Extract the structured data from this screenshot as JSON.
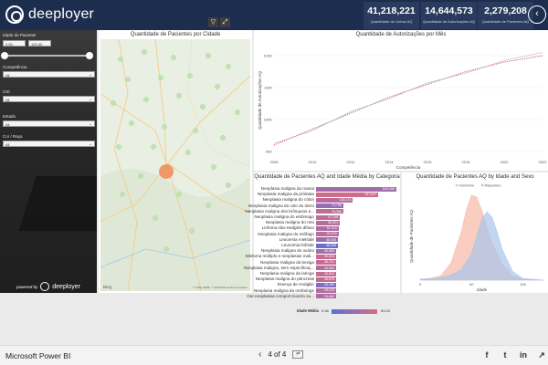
{
  "brand": {
    "name": "deeployer",
    "powered_by": "powered by"
  },
  "kpis": [
    {
      "value": "41,218,221",
      "label": "Quantidade de Linhas AQ"
    },
    {
      "value": "14,644,573",
      "label": "Quantidade de Autorizações AQ"
    },
    {
      "value": "2,279,208",
      "label": "Quantidade de Pacientes AQ"
    }
  ],
  "filters": {
    "age": {
      "label": "Idade do Paciente",
      "min": "0,00",
      "max": "120,00",
      "slider_from": 0.0,
      "slider_to": 1.0
    },
    "competencia": {
      "label": "Competência",
      "value": "All"
    },
    "cid": {
      "label": "CID",
      "value": "All"
    },
    "estado": {
      "label": "Estado",
      "value": "All"
    },
    "cor_raca": {
      "label": "Cor / Raça",
      "value": "All"
    }
  },
  "map": {
    "title": "Quantidade de Pacientes por Cidade",
    "provider": "Bing",
    "copyright": "© 2018 HERE, © 2018 Microsoft Corporation"
  },
  "line_chart": {
    "title": "Quantidade de Autorizações por Mês",
    "ylabel": "Quantidade de Autorizações AQ",
    "xlabel": "Competência"
  },
  "bar_chart": {
    "title": "Quantidade de Pacientes AQ and Idade Média by Categoria",
    "legend_title": "Idade Média",
    "legend_min": "0.66",
    "legend_max": "83.00"
  },
  "density_chart": {
    "title": "Quantidade de Pacientes AQ by Idade and Sexo",
    "legend": [
      "Feminino",
      "Masculino"
    ],
    "ylabel": "Quantidade de Pacientes AQ",
    "xlabel": "Idade"
  },
  "chart_data": [
    {
      "type": "line",
      "title": "Quantidade de Autorizações por Mês",
      "xlabel": "Competência",
      "ylabel": "Quantidade de Autorizações AQ",
      "x_ticks": [
        "2008",
        "2010",
        "2012",
        "2014",
        "2016",
        "2018",
        "2020",
        "2022"
      ],
      "y_ticks": [
        "90K",
        "100K",
        "110K",
        "120K"
      ],
      "xlim": [
        2008,
        2022
      ],
      "ylim": [
        88000,
        124000
      ],
      "series": [
        {
          "name": "",
          "style": "dotted",
          "color": "#e05060",
          "x": [
            2008,
            2010,
            2012,
            2014,
            2016,
            2018,
            2020,
            2022
          ],
          "y": [
            92000,
            97000,
            102000,
            107000,
            111000,
            115000,
            118000,
            120000
          ]
        },
        {
          "name": "",
          "style": "solid",
          "color": "#9fb2d6",
          "x": [
            2008,
            2010,
            2012,
            2014,
            2016,
            2018,
            2020,
            2022
          ],
          "y": [
            92500,
            96500,
            102500,
            106500,
            111500,
            114500,
            118500,
            121000
          ]
        }
      ],
      "grid": true
    },
    {
      "type": "bar",
      "title": "Quantidade de Pacientes AQ and Idade Média by Categoria",
      "orientation": "horizontal",
      "categories": [
        "Neoplasia maligna da mama",
        "Neoplasia maligna da próstata",
        "Neoplasia maligna do cólon",
        "Neoplasia maligna do colo do útero",
        "Neoplasia maligna dos brônquios e...",
        "Neoplasia maligna do estômago",
        "Neoplasia maligna do reto",
        "Linfoma não-Hodgkin difuso",
        "Neoplasia maligna do esôfago",
        "Leucemia mielóide",
        "Leucemia linfóide",
        "Neoplasia maligna do ovário",
        "Mieloma múltiplo e neoplasias mali...",
        "Neoplasia maligna da bexiga",
        "Neoplasia maligna, sem especificaç...",
        "Neoplasia maligna da laringe",
        "Neoplasia maligna do pâncreas",
        "Doença de Hodgkin",
        "Neoplasia maligna da orofaringe",
        "Out neoplasias comport incerto ou..."
      ],
      "values": [
        643066,
        387897,
        136123,
        74758,
        75360,
        57148,
        56921,
        51015,
        50374,
        48340,
        48058,
        40684,
        40633,
        38701,
        34960,
        30823,
        28876,
        28089,
        28025,
        25882
      ],
      "value_labels": [
        "643,066",
        "387,897",
        "136,123",
        "74,758",
        "75,360",
        "57,148",
        "56,921",
        "51,015",
        "50,374",
        "48,340",
        "48,058",
        "40,684",
        "40,633",
        "38,701",
        "34,960",
        "30,823",
        "28,876",
        "28,089",
        "28,025",
        "25,882"
      ],
      "color_measure": "Idade Média",
      "color_range": [
        0.66,
        83.0
      ]
    },
    {
      "type": "area",
      "title": "Quantidade de Pacientes AQ by Idade and Sexo",
      "xlabel": "Idade",
      "ylabel": "Quantidade de Pacientes AQ",
      "x_ticks": [
        "0",
        "50",
        "100"
      ],
      "xlim": [
        0,
        120
      ],
      "ylim": [
        0,
        1
      ],
      "legend_position": "top-center",
      "series": [
        {
          "name": "Feminino",
          "color": "#f7b9a6",
          "x": [
            0,
            10,
            20,
            30,
            40,
            45,
            50,
            55,
            60,
            65,
            70,
            80,
            90,
            100,
            120
          ],
          "y": [
            0.01,
            0.02,
            0.05,
            0.2,
            0.55,
            0.8,
            0.97,
            0.95,
            0.8,
            0.6,
            0.42,
            0.18,
            0.05,
            0.01,
            0.0
          ]
        },
        {
          "name": "Masculino",
          "color": "#a8c4ea",
          "x": [
            0,
            10,
            20,
            30,
            40,
            50,
            55,
            60,
            65,
            70,
            75,
            80,
            90,
            100,
            120
          ],
          "y": [
            0.01,
            0.02,
            0.03,
            0.06,
            0.12,
            0.3,
            0.5,
            0.7,
            0.78,
            0.72,
            0.55,
            0.35,
            0.1,
            0.02,
            0.0
          ]
        }
      ]
    }
  ],
  "footer": {
    "app_name": "Microsoft Power BI",
    "page_indicator": "4 of 4",
    "prev": "‹",
    "next_box": "⇄"
  },
  "colors": {
    "header": "#1c2d4e",
    "kpi_tile": "#2a3b5d",
    "bubble": "#f08a56"
  }
}
